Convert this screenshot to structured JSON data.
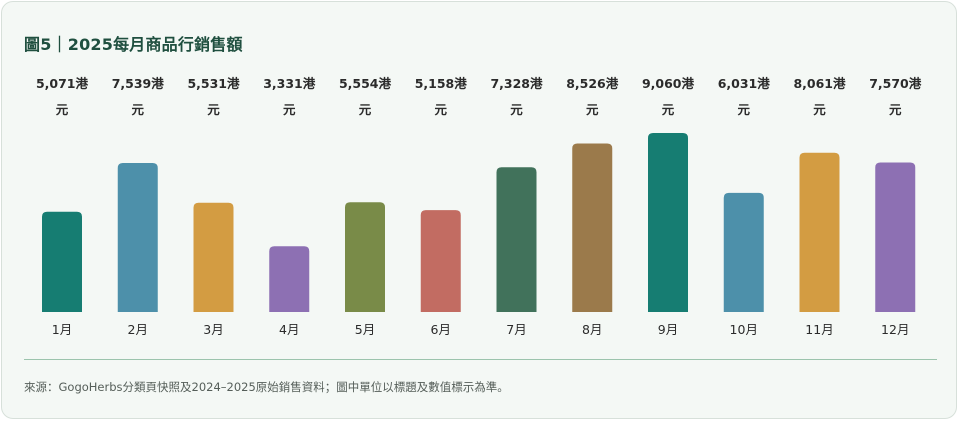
{
  "title": "圖5｜2025每月商品行銷售額",
  "footnote": "來源：GogoHerbs分類頁快照及2024–2025原始銷售資料；圖中單位以標題及數值標示為準。",
  "chart_data": {
    "type": "bar",
    "title": "圖5｜2025每月商品行銷售額",
    "categories": [
      "1月",
      "2月",
      "3月",
      "4月",
      "5月",
      "6月",
      "7月",
      "8月",
      "9月",
      "10月",
      "11月",
      "12月"
    ],
    "values": [
      5071,
      7539,
      5531,
      3331,
      5554,
      5158,
      7328,
      8526,
      9060,
      6031,
      8061,
      7570
    ],
    "value_labels": [
      [
        "5,071港",
        "元"
      ],
      [
        "7,539港",
        "元"
      ],
      [
        "5,531港",
        "元"
      ],
      [
        "3,331港",
        "元"
      ],
      [
        "5,554港",
        "元"
      ],
      [
        "5,158港",
        "元"
      ],
      [
        "7,328港",
        "元"
      ],
      [
        "8,526港",
        "元"
      ],
      [
        "9,060港",
        "元"
      ],
      [
        "6,031港",
        "元"
      ],
      [
        "8,061港",
        "元"
      ],
      [
        "7,570港",
        "元"
      ]
    ],
    "colors": [
      "#167d72",
      "#4d90aa",
      "#d39c42",
      "#8d70b3",
      "#798b48",
      "#c26c62",
      "#41725b",
      "#9b7a4b",
      "#167d72",
      "#4d90aa",
      "#d39c42",
      "#8d70b3"
    ],
    "ylim": [
      0,
      9060
    ],
    "grid": false,
    "legend": "none",
    "xlabel": "",
    "ylabel": ""
  }
}
